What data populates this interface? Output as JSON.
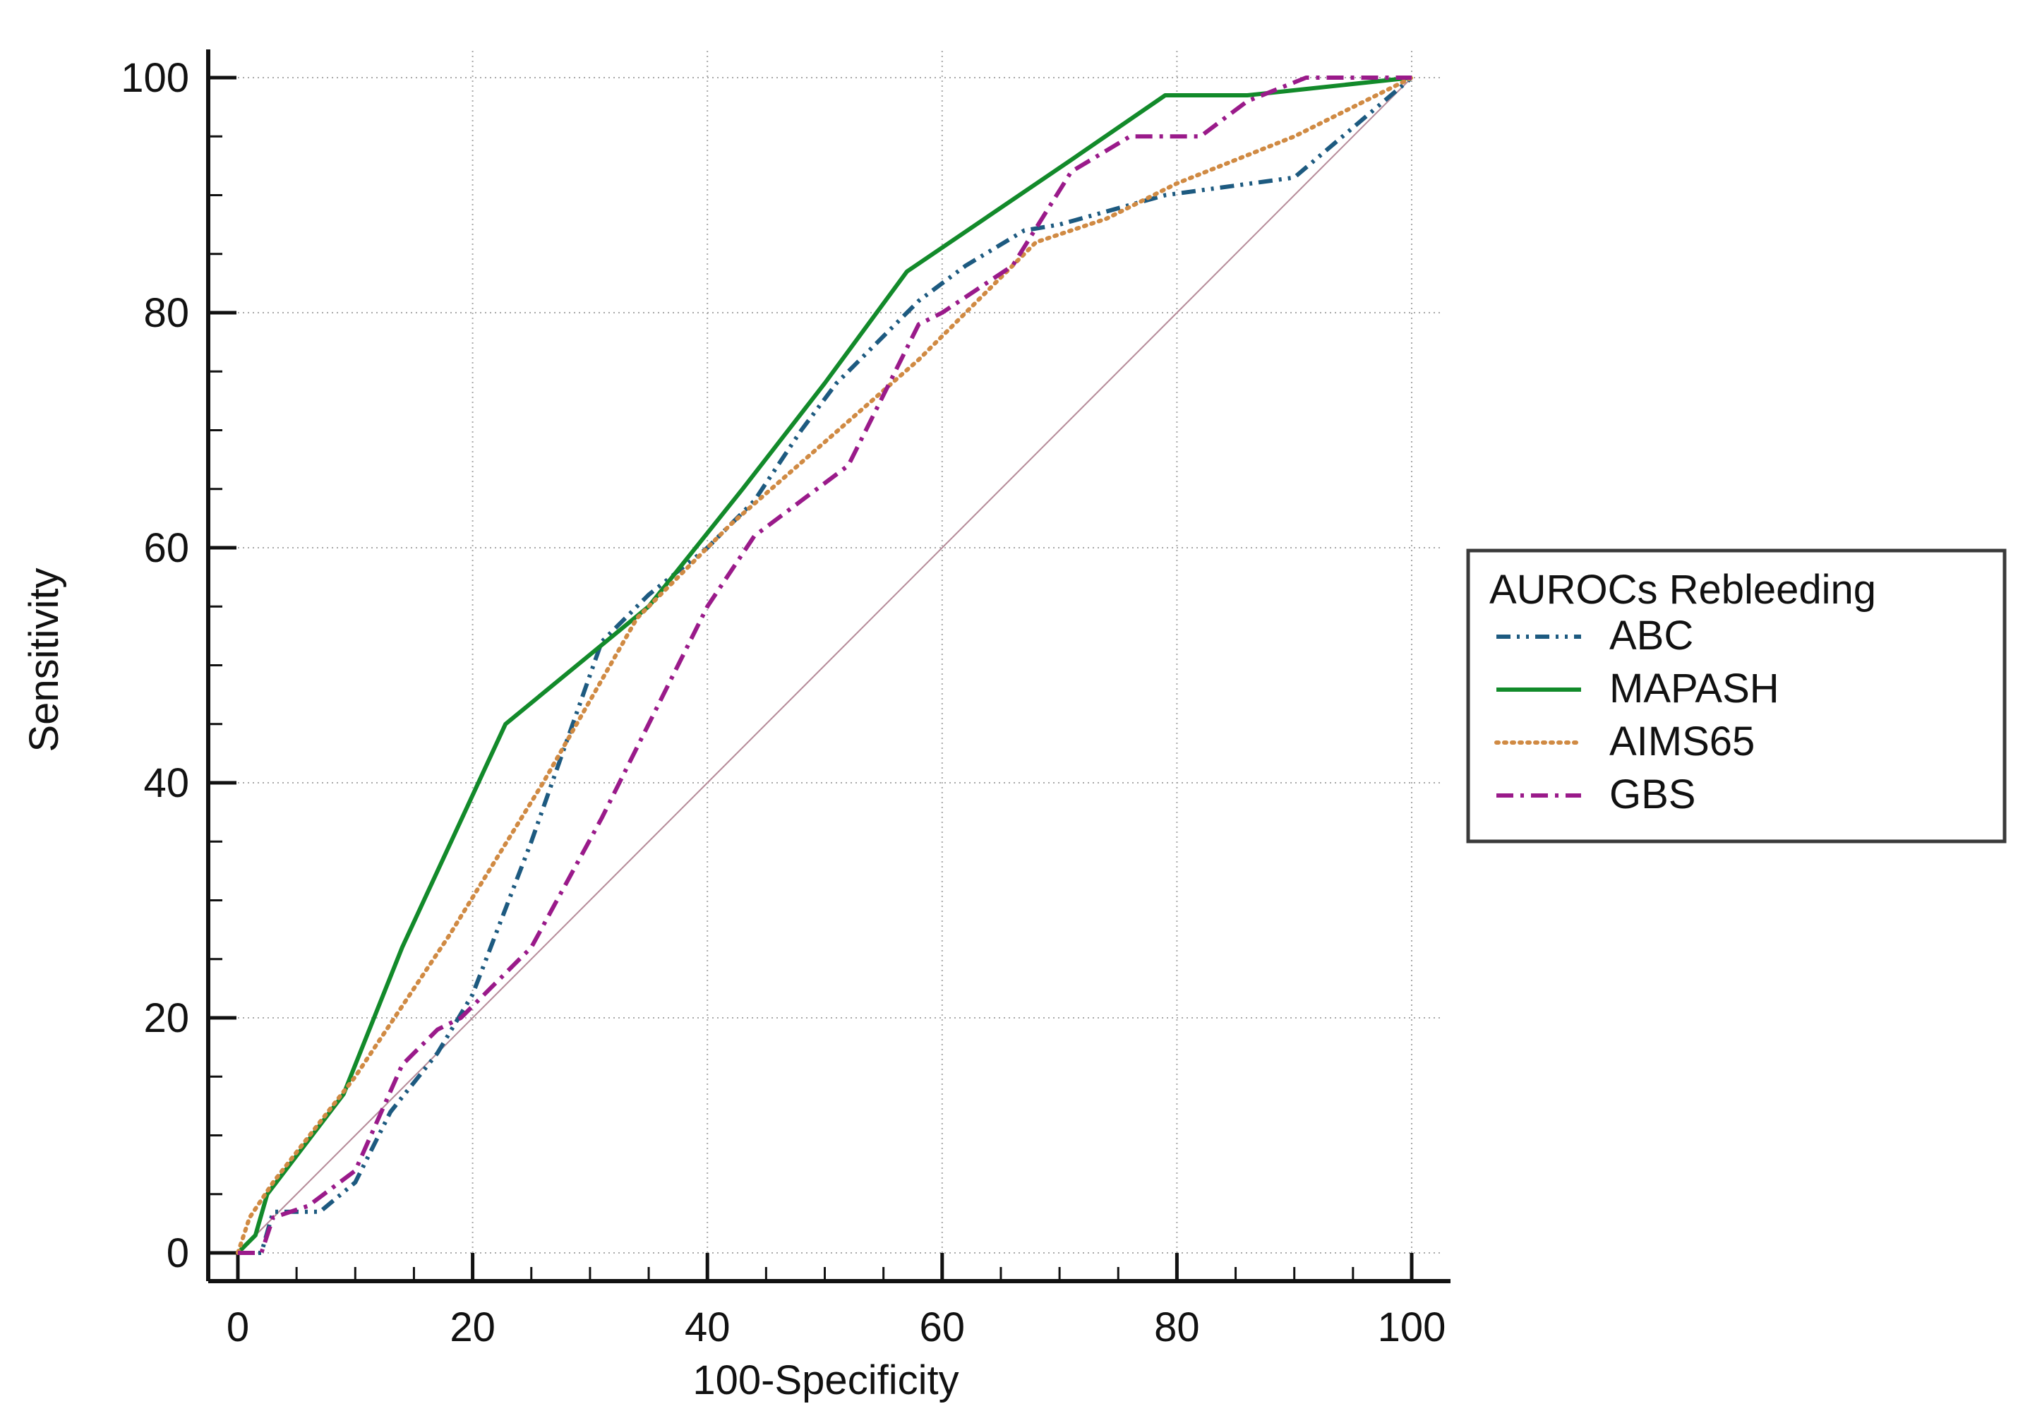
{
  "chart_data": {
    "type": "line",
    "xlabel": "100-Specificity",
    "ylabel": "Sensitivity",
    "xlim": [
      0,
      100
    ],
    "ylim": [
      0,
      100
    ],
    "xticks": [
      0,
      20,
      40,
      60,
      80,
      100
    ],
    "yticks": [
      0,
      20,
      40,
      60,
      80,
      100
    ],
    "grid": true,
    "legend": {
      "title": "AUROCs Rebleeding",
      "placement": "right"
    },
    "reference_line": {
      "x": [
        0,
        100
      ],
      "y": [
        0,
        100
      ],
      "color": "#b58a98"
    },
    "series": [
      {
        "name": "ABC",
        "color": "#1d5a80",
        "dash": "dash-dot-dot",
        "x": [
          0,
          2,
          3,
          7,
          10,
          13,
          17,
          20,
          25,
          31,
          35,
          40,
          44,
          48,
          51,
          55,
          58,
          62,
          67,
          70,
          79,
          90,
          100
        ],
        "y": [
          0,
          0,
          3.5,
          3.5,
          6,
          12,
          17,
          22,
          35,
          52,
          56,
          60,
          64,
          70,
          74,
          78,
          81,
          84,
          87,
          87.5,
          90,
          91.5,
          100
        ]
      },
      {
        "name": "MAPASH",
        "color": "#128a2a",
        "dash": "solid",
        "x": [
          0,
          1.5,
          2.5,
          9,
          14,
          22.8,
          35,
          43,
          50,
          57,
          71,
          79,
          86,
          100
        ],
        "y": [
          0,
          1.5,
          5,
          13.5,
          26,
          45,
          55,
          65,
          74,
          83.5,
          93,
          98.5,
          98.5,
          100
        ]
      },
      {
        "name": "AIMS65",
        "color": "#d08a43",
        "dash": "dotted",
        "x": [
          0,
          1,
          3,
          10,
          18,
          26,
          34,
          42,
          50,
          58,
          62,
          68,
          74,
          80,
          90,
          100
        ],
        "y": [
          0,
          3,
          6,
          15,
          27,
          40,
          54,
          62,
          69,
          76,
          80,
          86,
          88,
          91,
          95,
          100
        ]
      },
      {
        "name": "GBS",
        "color": "#9a1a8a",
        "dash": "dash-dot",
        "x": [
          0,
          2,
          3,
          6,
          10,
          14,
          17,
          19,
          22,
          25,
          31,
          35,
          40,
          44,
          48,
          52,
          55,
          58,
          60,
          63,
          66,
          71,
          76,
          79,
          82,
          86,
          91,
          100
        ],
        "y": [
          0,
          0,
          3,
          4,
          7,
          16,
          19,
          20,
          23,
          26,
          37,
          45,
          55,
          61,
          64,
          67,
          73,
          79,
          80,
          82,
          84,
          92,
          95,
          95,
          95,
          98,
          100,
          100
        ]
      }
    ]
  }
}
